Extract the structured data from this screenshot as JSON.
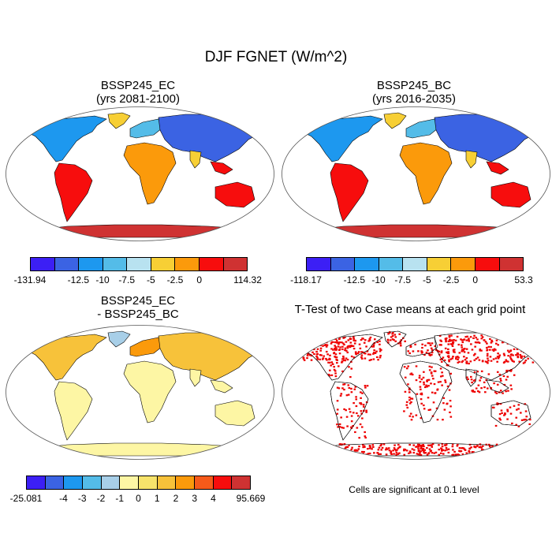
{
  "title": "DJF FGNET (W/m^2)",
  "panels": [
    {
      "title_line1": "BSSP245_EC",
      "title_line2": "(yrs 2081-2100)"
    },
    {
      "title_line1": "BSSP245_BC",
      "title_line2": "(yrs 2016-2035)"
    },
    {
      "title_line1": "BSSP245_EC",
      "title_line2": "- BSSP245_BC"
    },
    {
      "title_line1": "T-Test of two Case means at each grid point",
      "title_line2": ""
    }
  ],
  "colorbars": {
    "top_left": {
      "colors": [
        "#3c1ff5",
        "#3b63e3",
        "#1d98ef",
        "#54bce8",
        "#b8e2f0",
        "#f7cf35",
        "#fb9a0b",
        "#f70d0d",
        "#cf3232"
      ],
      "tick_labels": [
        "-131.94",
        "-12.5",
        "-10",
        "-7.5",
        "-5",
        "-2.5",
        "0",
        "114.32"
      ]
    },
    "top_right": {
      "colors": [
        "#3c1ff5",
        "#3b63e3",
        "#1d98ef",
        "#54bce8",
        "#b8e2f0",
        "#f7cf35",
        "#fb9a0b",
        "#f70d0d",
        "#cf3232"
      ],
      "tick_labels": [
        "-118.17",
        "-12.5",
        "-10",
        "-7.5",
        "-5",
        "-2.5",
        "0",
        "53.3"
      ]
    },
    "bottom_left": {
      "colors": [
        "#3c1ff5",
        "#3b63e3",
        "#1d98ef",
        "#54bce8",
        "#a8cfe8",
        "#fdf6a4",
        "#f7e36b",
        "#f7c23a",
        "#fb9a0b",
        "#f65a1a",
        "#f70d0d",
        "#cf3232"
      ],
      "tick_labels": [
        "-25.081",
        "-4",
        "-3",
        "-2",
        "-1",
        "0",
        "1",
        "2",
        "3",
        "4",
        "95.669"
      ]
    }
  },
  "significance_note": "Cells are significant at 0.1 level"
}
